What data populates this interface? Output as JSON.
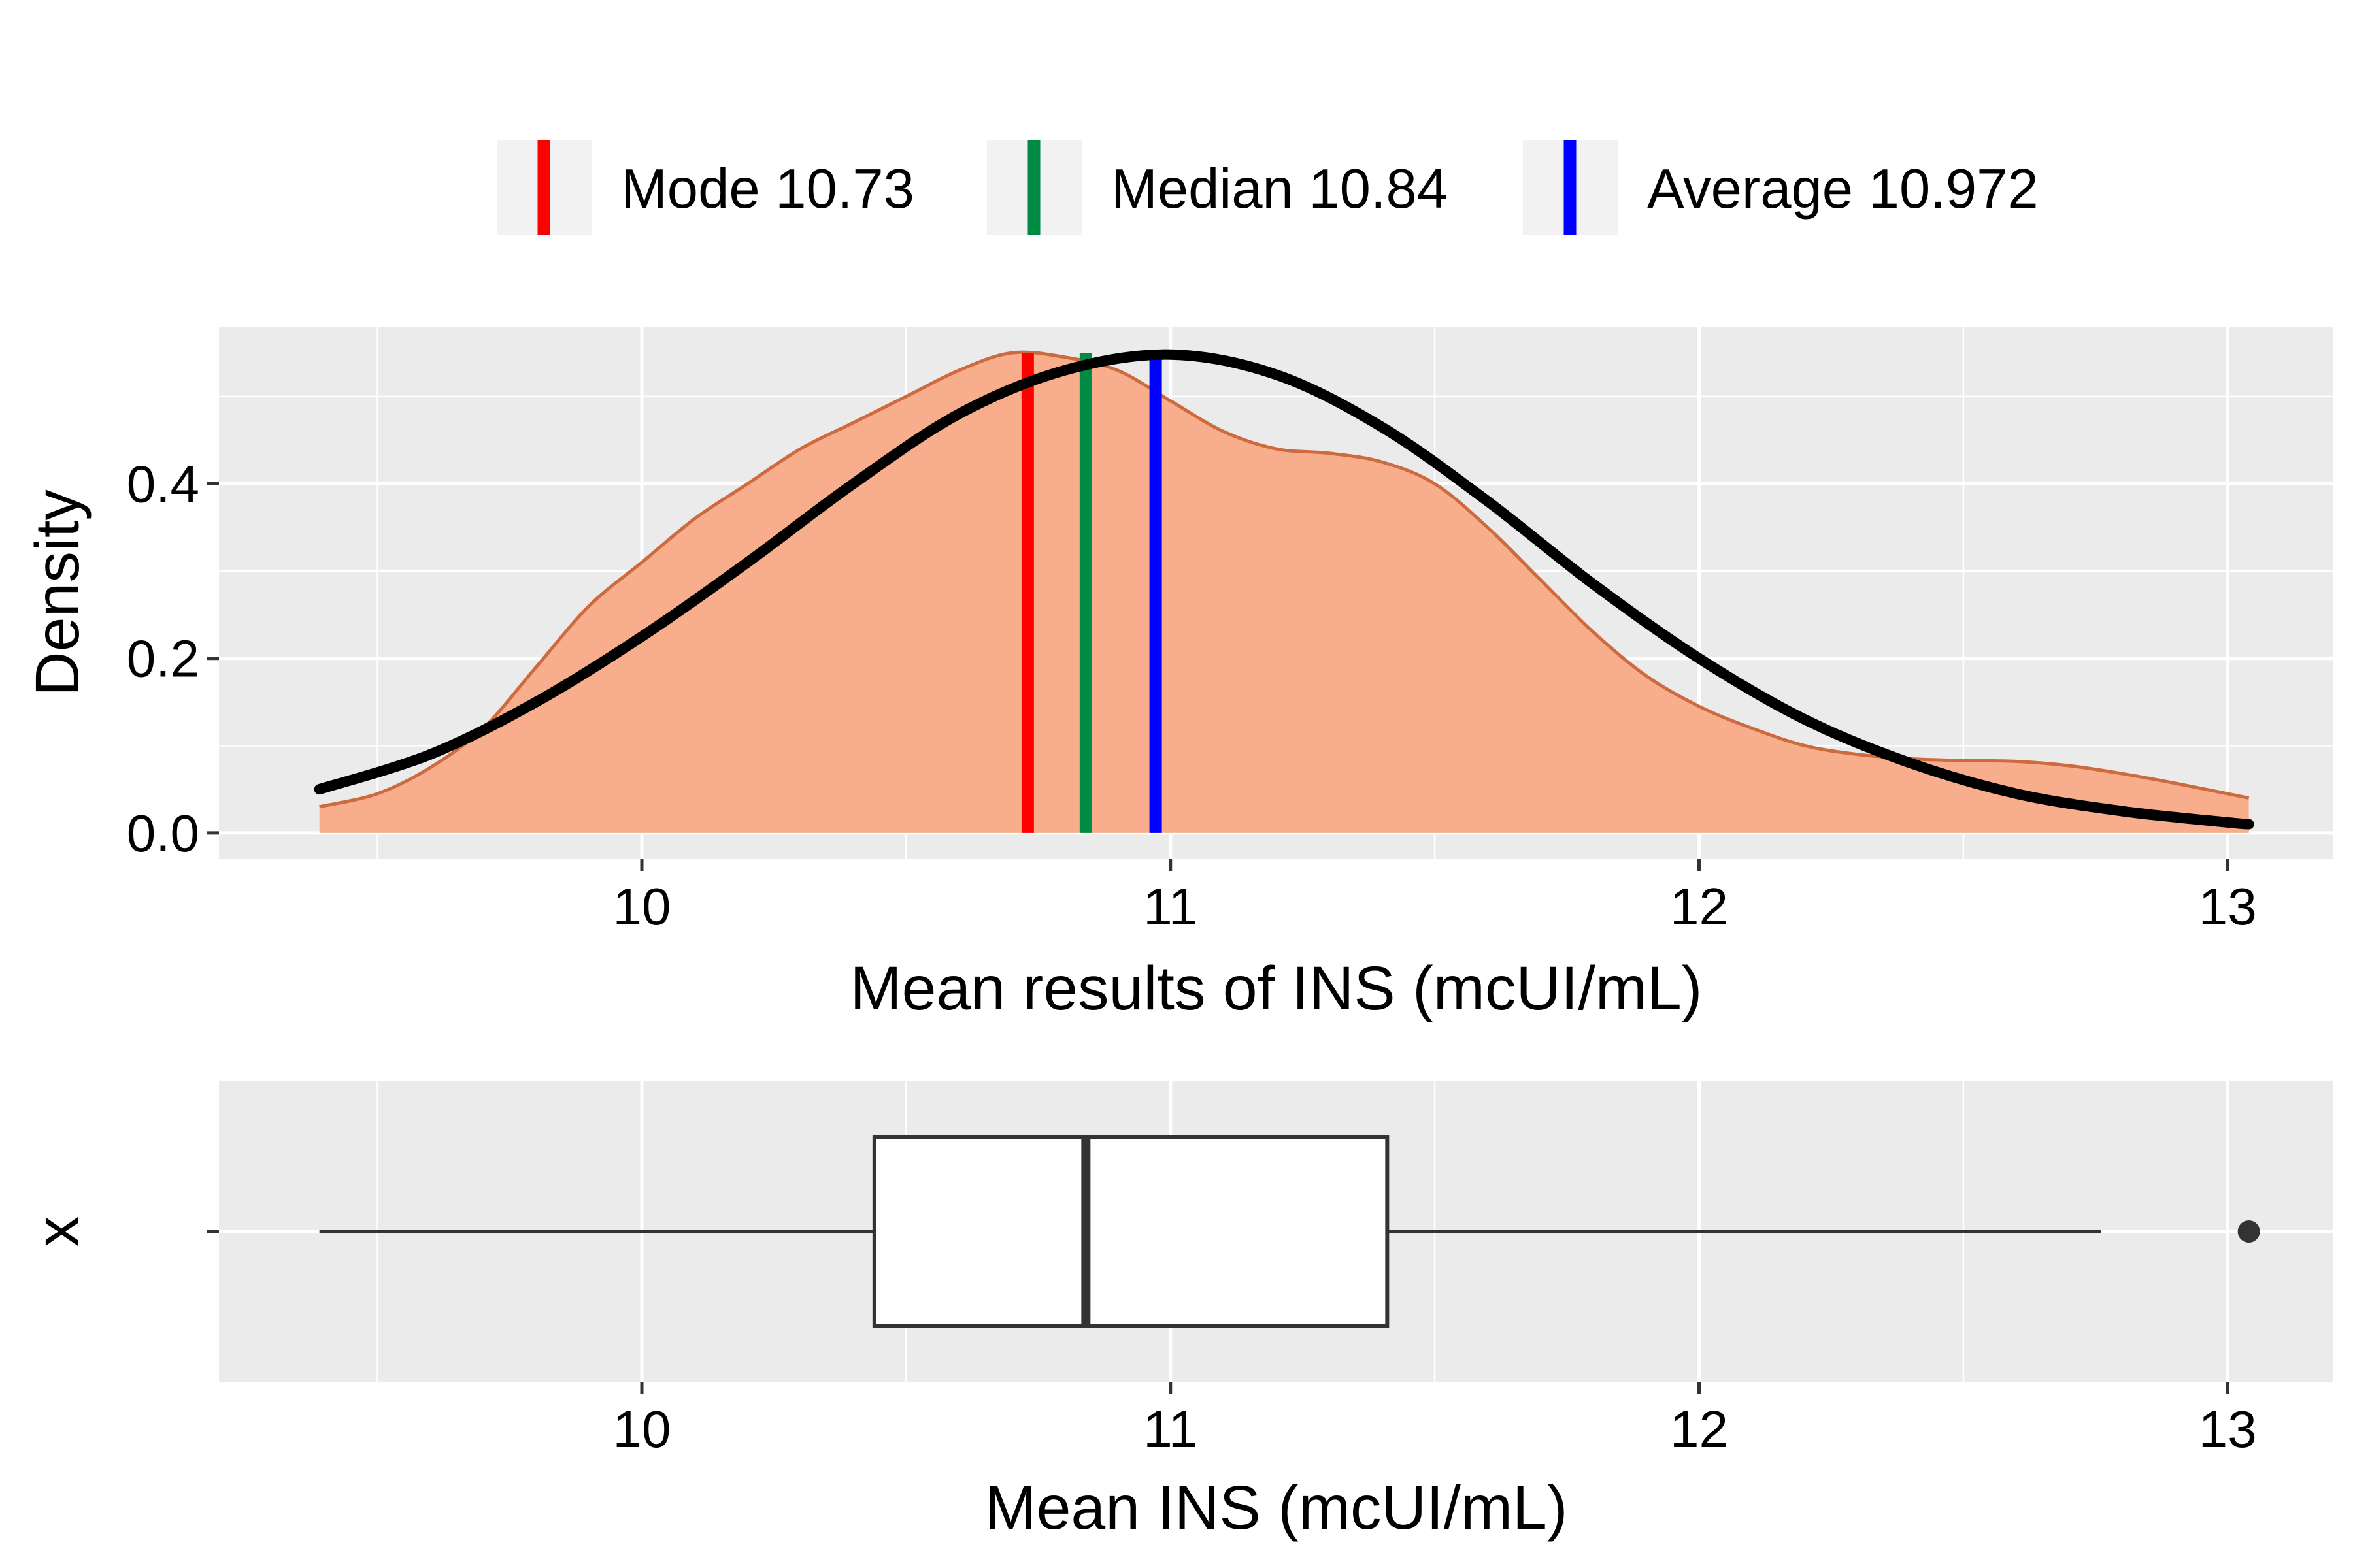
{
  "chart_data": [
    {
      "type": "area",
      "subtype": "density",
      "title": "",
      "xlabel": "Mean results of INS (mcUI/mL)",
      "ylabel": "Density",
      "xlim": [
        9.2,
        13.2
      ],
      "ylim": [
        -0.03,
        0.58
      ],
      "xticks": [
        10,
        11,
        12,
        13
      ],
      "xtick_labels": [
        "10",
        "11",
        "12",
        "13"
      ],
      "yticks": [
        0.0,
        0.2,
        0.4
      ],
      "ytick_labels": [
        "0.0",
        "0.2",
        "0.4"
      ],
      "grid": true,
      "legend_position": "top",
      "series": [
        {
          "kind": "kernel-density",
          "x": [
            9.39,
            9.5,
            9.6,
            9.7,
            9.8,
            9.9,
            10.0,
            10.1,
            10.2,
            10.3,
            10.4,
            10.5,
            10.6,
            10.7,
            10.8,
            10.9,
            11.0,
            11.1,
            11.2,
            11.3,
            11.4,
            11.5,
            11.6,
            11.7,
            11.8,
            11.9,
            12.0,
            12.1,
            12.2,
            12.3,
            12.4,
            12.5,
            12.6,
            12.7,
            12.8,
            12.9,
            13.04
          ],
          "y": [
            0.03,
            0.045,
            0.075,
            0.12,
            0.19,
            0.26,
            0.31,
            0.36,
            0.4,
            0.44,
            0.47,
            0.5,
            0.53,
            0.55,
            0.545,
            0.53,
            0.495,
            0.46,
            0.44,
            0.435,
            0.425,
            0.4,
            0.35,
            0.29,
            0.23,
            0.18,
            0.145,
            0.12,
            0.1,
            0.09,
            0.085,
            0.083,
            0.082,
            0.077,
            0.068,
            0.057,
            0.04
          ],
          "fill": "#F8AE8C",
          "stroke": "#CD6A3E"
        },
        {
          "kind": "normal-curve",
          "mean": 10.972,
          "sd": 0.727,
          "x": [
            9.39,
            9.6,
            9.8,
            10.0,
            10.2,
            10.4,
            10.6,
            10.8,
            11.0,
            11.2,
            11.4,
            11.6,
            11.8,
            12.0,
            12.2,
            12.4,
            12.6,
            12.8,
            13.0,
            13.04
          ],
          "y": [
            0.05,
            0.09,
            0.15,
            0.225,
            0.31,
            0.4,
            0.48,
            0.53,
            0.548,
            0.525,
            0.465,
            0.38,
            0.285,
            0.2,
            0.13,
            0.08,
            0.045,
            0.025,
            0.012,
            0.01
          ],
          "stroke": "#000000"
        }
      ],
      "reference_lines": [
        {
          "name": "Mode",
          "label": "Mode  10.73",
          "x": 10.73,
          "color": "#FF0000"
        },
        {
          "name": "Median",
          "label": "Median  10.84",
          "x": 10.84,
          "color": "#008B45"
        },
        {
          "name": "Average",
          "label": "Average  10.972",
          "x": 10.972,
          "color": "#0000FF"
        }
      ]
    },
    {
      "type": "boxplot",
      "title": "",
      "xlabel": "Mean INS (mcUI/mL)",
      "ylabel": "x",
      "xlim": [
        9.2,
        13.2
      ],
      "xticks": [
        10,
        11,
        12,
        13
      ],
      "xtick_labels": [
        "10",
        "11",
        "12",
        "13"
      ],
      "grid": true,
      "whisker_low": 9.39,
      "q1": 10.44,
      "median": 10.84,
      "q3": 11.41,
      "whisker_high": 12.76,
      "outliers": [
        13.04
      ]
    }
  ]
}
